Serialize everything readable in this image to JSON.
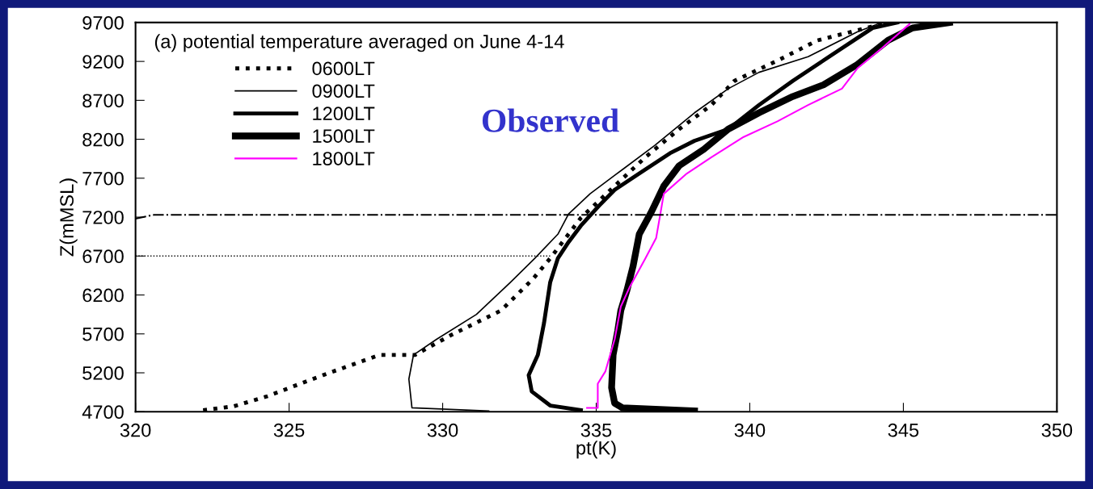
{
  "chart_data": {
    "type": "line",
    "xlabel": "pt(K)",
    "ylabel": "Z(mMSL)",
    "xlim": [
      320,
      350
    ],
    "xticks": [
      320,
      325,
      330,
      335,
      340,
      345,
      350
    ],
    "ylim": [
      4700,
      9700
    ],
    "yticks": [
      4700,
      5200,
      5700,
      6200,
      6700,
      7200,
      7700,
      8200,
      8700,
      9200,
      9700
    ],
    "grid": false,
    "legend": "top left",
    "annotations": [
      "(a) potential temperature averaged on June 4-14",
      "Observed"
    ],
    "series": [
      {
        "name": "0600LT",
        "color": "#000000",
        "line_style": "dotted",
        "x": [
          322.2,
          323.2,
          324.3,
          326.1,
          327.95,
          329.1,
          330.3,
          331.9,
          332.95,
          333.5,
          334.5,
          335.6,
          336.6,
          337.7,
          338.75,
          339.5,
          340.9,
          342.2,
          344.5
        ],
        "values": [
          4720,
          4770,
          4900,
          5170,
          5430,
          5430,
          5690,
          6000,
          6410,
          6670,
          7190,
          7600,
          7970,
          8330,
          8640,
          8950,
          9210,
          9470,
          9700
        ]
      },
      {
        "name": "0900LT",
        "color": "#000000",
        "line_style": "solid",
        "x": [
          331.5,
          329.0,
          328.9,
          329.05,
          329.8,
          331.1,
          332.2,
          333.0,
          333.75,
          334.1,
          334.8,
          335.85,
          336.9,
          338.2,
          339.3,
          340.3,
          341.9,
          343.5,
          344.3
        ],
        "values": [
          4710,
          4750,
          5120,
          5430,
          5630,
          5950,
          6360,
          6670,
          6980,
          7240,
          7500,
          7810,
          8120,
          8540,
          8850,
          9060,
          9260,
          9580,
          9700
        ]
      },
      {
        "name": "1200LT",
        "color": "#000000",
        "line_style": "solid",
        "x": [
          334.5,
          333.5,
          332.9,
          332.8,
          333.1,
          333.3,
          333.5,
          333.75,
          334.1,
          334.5,
          335.1,
          335.6,
          336.4,
          337.4,
          338.2,
          339.3,
          340.3,
          341.4,
          342.2,
          343.0,
          344.0,
          344.8
        ],
        "values": [
          4720,
          4780,
          4960,
          5170,
          5430,
          5840,
          6360,
          6670,
          6880,
          7090,
          7350,
          7550,
          7760,
          8020,
          8180,
          8330,
          8640,
          8950,
          9160,
          9370,
          9630,
          9700
        ]
      },
      {
        "name": "1500LT",
        "color": "#000000",
        "line_style": "solid",
        "x": [
          338.2,
          335.85,
          335.6,
          335.5,
          335.55,
          335.7,
          335.8,
          336.0,
          336.2,
          336.4,
          336.8,
          337.2,
          337.7,
          338.5,
          339.3,
          340.3,
          341.4,
          342.4,
          343.5,
          344.5,
          345.3,
          346.5
        ],
        "values": [
          4710,
          4750,
          4810,
          5010,
          5430,
          5740,
          6000,
          6260,
          6570,
          6980,
          7270,
          7600,
          7860,
          8070,
          8330,
          8540,
          8750,
          8900,
          9160,
          9470,
          9630,
          9700
        ]
      },
      {
        "name": "1800LT",
        "color": "#ff00ff",
        "line_style": "solid",
        "x": [
          334.7,
          335.05,
          335.05,
          335.3,
          335.6,
          335.8,
          336.1,
          336.6,
          336.95,
          337.1,
          337.2,
          337.95,
          338.75,
          339.8,
          340.9,
          341.9,
          343.0,
          343.5,
          344.3,
          345.2
        ],
        "values": [
          4750,
          4750,
          5060,
          5220,
          5630,
          6050,
          6310,
          6670,
          6930,
          7270,
          7500,
          7760,
          7970,
          8230,
          8430,
          8640,
          8850,
          9110,
          9370,
          9680
        ]
      },
      {
        "color": "#000000",
        "line_style": "dotted",
        "x": [
          320,
          333.5
        ],
        "values": [
          6700,
          6700
        ]
      },
      {
        "color": "#000000",
        "line_style": "dashdot",
        "x": [
          320,
          320.6,
          350
        ],
        "values": [
          7180,
          7230,
          7230
        ]
      }
    ]
  }
}
